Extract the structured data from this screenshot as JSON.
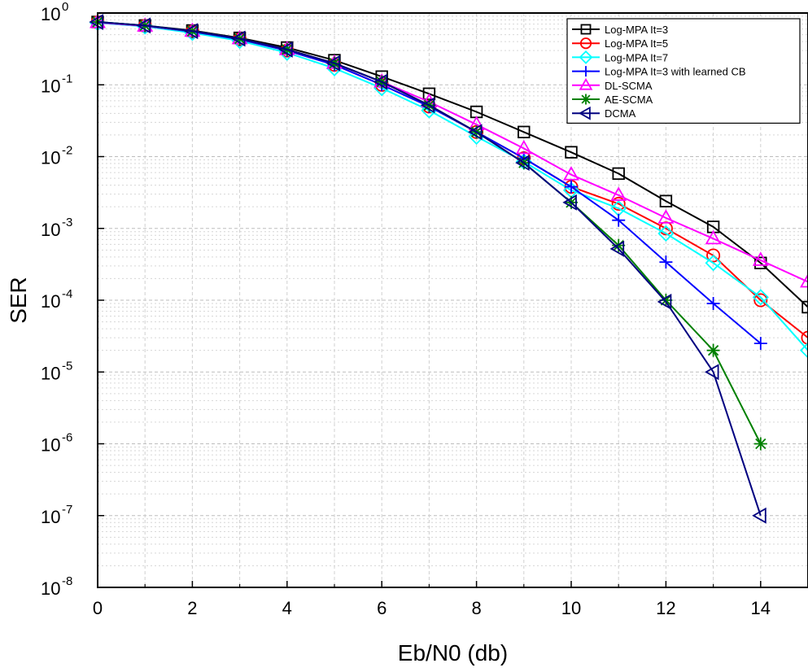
{
  "chart_data": {
    "type": "line",
    "xlabel": "Eb/N0 (db)",
    "ylabel": "SER",
    "xlim": [
      0,
      15
    ],
    "ylim": [
      1e-08,
      1
    ],
    "yscale": "log",
    "x_ticks": [
      0,
      2,
      4,
      6,
      8,
      10,
      12,
      14
    ],
    "y_ticks": [
      {
        "base": "10",
        "exp": "0"
      },
      {
        "base": "10",
        "exp": "-1"
      },
      {
        "base": "10",
        "exp": "-2"
      },
      {
        "base": "10",
        "exp": "-3"
      },
      {
        "base": "10",
        "exp": "-4"
      },
      {
        "base": "10",
        "exp": "-5"
      },
      {
        "base": "10",
        "exp": "-6"
      },
      {
        "base": "10",
        "exp": "-7"
      },
      {
        "base": "10",
        "exp": "-8"
      }
    ],
    "grid": true,
    "legend_position": "top-right",
    "series": [
      {
        "name": "Log-MPA It=3",
        "color": "#000000",
        "marker": "square",
        "x": [
          0,
          1,
          2,
          3,
          4,
          5,
          6,
          7,
          8,
          9,
          10,
          11,
          12,
          13,
          14,
          15
        ],
        "y": [
          0.75,
          0.67,
          0.57,
          0.45,
          0.33,
          0.22,
          0.13,
          0.075,
          0.042,
          0.022,
          0.0115,
          0.0058,
          0.0024,
          0.00105,
          0.00033,
          8e-05
        ]
      },
      {
        "name": "Log-MPA It=5",
        "color": "#ff0000",
        "marker": "circle",
        "x": [
          0,
          1,
          2,
          3,
          4,
          5,
          6,
          7,
          8,
          9,
          10,
          11,
          12,
          13,
          14,
          15
        ],
        "y": [
          0.74,
          0.66,
          0.55,
          0.43,
          0.3,
          0.19,
          0.1,
          0.05,
          0.022,
          0.0095,
          0.0038,
          0.0022,
          0.001,
          0.00042,
          0.0001,
          3e-05
        ]
      },
      {
        "name": "Log-MPA It=7",
        "color": "#00ffff",
        "marker": "diamond",
        "x": [
          0,
          1,
          2,
          3,
          4,
          5,
          6,
          7,
          8,
          9,
          10,
          11,
          12,
          13,
          14,
          15
        ],
        "y": [
          0.73,
          0.65,
          0.53,
          0.41,
          0.28,
          0.17,
          0.09,
          0.044,
          0.019,
          0.0085,
          0.0034,
          0.0019,
          0.00085,
          0.00033,
          0.00011,
          2e-05
        ]
      },
      {
        "name": "Log-MPA It=3 with learned CB",
        "color": "#0000ff",
        "marker": "plus",
        "x": [
          0,
          1,
          2,
          3,
          4,
          5,
          6,
          7,
          8,
          9,
          10,
          11,
          12,
          13,
          14
        ],
        "y": [
          0.74,
          0.66,
          0.55,
          0.43,
          0.3,
          0.19,
          0.1,
          0.05,
          0.022,
          0.0095,
          0.0038,
          0.0013,
          0.00034,
          9e-05,
          2.5e-05
        ]
      },
      {
        "name": "DL-SCMA",
        "color": "#ff00ff",
        "marker": "triangle-up",
        "x": [
          0,
          1,
          2,
          3,
          4,
          5,
          6,
          7,
          8,
          9,
          10,
          11,
          12,
          13,
          14,
          15
        ],
        "y": [
          0.74,
          0.66,
          0.56,
          0.44,
          0.31,
          0.2,
          0.11,
          0.058,
          0.028,
          0.013,
          0.0056,
          0.0029,
          0.0014,
          0.00072,
          0.00036,
          0.00018
        ]
      },
      {
        "name": "AE-SCMA",
        "color": "#008000",
        "marker": "star",
        "x": [
          0,
          1,
          2,
          3,
          4,
          5,
          6,
          7,
          8,
          9,
          10,
          11,
          12,
          13,
          14
        ],
        "y": [
          0.75,
          0.67,
          0.56,
          0.44,
          0.31,
          0.2,
          0.11,
          0.052,
          0.022,
          0.0082,
          0.0023,
          0.00058,
          0.0001,
          2e-05,
          1e-06
        ]
      },
      {
        "name": "DCMA",
        "color": "#000080",
        "marker": "triangle-left",
        "x": [
          0,
          1,
          2,
          3,
          4,
          5,
          6,
          7,
          8,
          9,
          10,
          11,
          12,
          13,
          14
        ],
        "y": [
          0.75,
          0.67,
          0.56,
          0.44,
          0.31,
          0.2,
          0.11,
          0.052,
          0.022,
          0.0082,
          0.0023,
          0.00052,
          9.5e-05,
          1e-05,
          1e-07
        ]
      }
    ]
  }
}
